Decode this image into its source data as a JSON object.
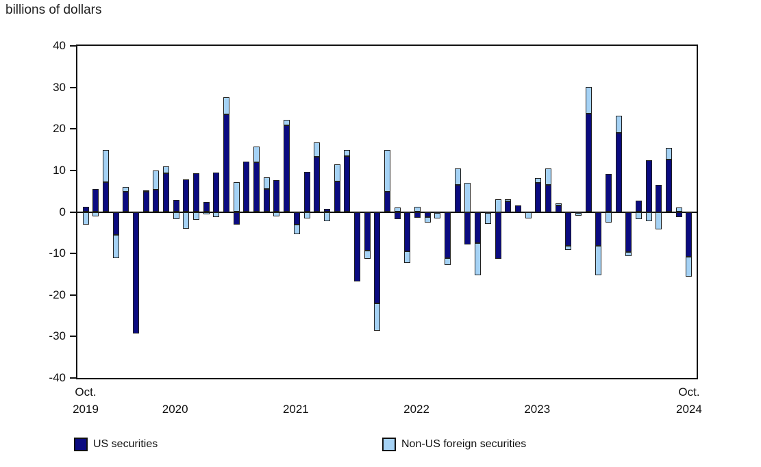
{
  "title": "billions of dollars",
  "colors": {
    "us_securities": "#0b0b80",
    "non_us_securities": "#a5d2f5",
    "axis": "#111111",
    "background": "#ffffff"
  },
  "y_axis": {
    "ticks": [
      40,
      30,
      20,
      10,
      0,
      -10,
      -20,
      -30,
      -40
    ],
    "min": -40,
    "max": 40
  },
  "x_axis": {
    "labels": [
      {
        "line1": "Oct.",
        "line2": "2019",
        "month_index": 0
      },
      {
        "line1": "",
        "line2": "2020",
        "month_index": 8.9
      },
      {
        "line1": "",
        "line2": "2021",
        "month_index": 20.9
      },
      {
        "line1": "",
        "line2": "2022",
        "month_index": 32.9
      },
      {
        "line1": "",
        "line2": "2023",
        "month_index": 44.9
      },
      {
        "line1": "Oct.",
        "line2": "2024",
        "month_index": 60
      }
    ]
  },
  "legend": [
    {
      "label": "US securities",
      "series": "us_securities"
    },
    {
      "label": "Non-US foreign securities",
      "series": "non_us_securities"
    }
  ],
  "chart_data": {
    "type": "bar",
    "stacked": true,
    "title": "billions of dollars",
    "ylabel": "billions of dollars",
    "ylim": [
      -40,
      40
    ],
    "grid": false,
    "legend_position": "bottom",
    "categories": [
      "Oct 2019",
      "Nov 2019",
      "Dec 2019",
      "Jan 2020",
      "Feb 2020",
      "Mar 2020",
      "Apr 2020",
      "May 2020",
      "Jun 2020",
      "Jul 2020",
      "Aug 2020",
      "Sep 2020",
      "Oct 2020",
      "Nov 2020",
      "Dec 2020",
      "Jan 2021",
      "Feb 2021",
      "Mar 2021",
      "Apr 2021",
      "May 2021",
      "Jun 2021",
      "Jul 2021",
      "Aug 2021",
      "Sep 2021",
      "Oct 2021",
      "Nov 2021",
      "Dec 2021",
      "Jan 2022",
      "Feb 2022",
      "Mar 2022",
      "Apr 2022",
      "May 2022",
      "Jun 2022",
      "Jul 2022",
      "Aug 2022",
      "Sep 2022",
      "Oct 2022",
      "Nov 2022",
      "Dec 2022",
      "Jan 2023",
      "Feb 2023",
      "Mar 2023",
      "Apr 2023",
      "May 2023",
      "Jun 2023",
      "Jul 2023",
      "Aug 2023",
      "Sep 2023",
      "Oct 2023",
      "Nov 2023",
      "Dec 2023",
      "Jan 2024",
      "Feb 2024",
      "Mar 2024",
      "Apr 2024",
      "May 2024",
      "Jun 2024",
      "Jul 2024",
      "Aug 2024",
      "Sep 2024",
      "Oct 2024"
    ],
    "series": [
      {
        "name": "US securities",
        "values": [
          1.3,
          5.6,
          7.2,
          -5.6,
          4.8,
          -29.3,
          4.8,
          5.4,
          9.4,
          2.9,
          7.8,
          9.4,
          2.4,
          9.5,
          23.5,
          -3.0,
          12.2,
          11.9,
          5.6,
          7.7,
          20.8,
          -3.1,
          9.6,
          13.3,
          0.8,
          7.4,
          13.4,
          -16.7,
          -9.4,
          -22.0,
          4.8,
          -1.8,
          -9.5,
          -1.4,
          -1.3,
          -0.3,
          -11.1,
          6.5,
          -7.8,
          -7.5,
          -0.3,
          -11.3,
          2.5,
          1.5,
          0.0,
          7.0,
          6.5,
          1.5,
          -8.2,
          -0.2,
          23.6,
          -8.1,
          9.2,
          19.0,
          -9.6,
          2.8,
          12.5,
          6.5,
          12.7,
          -1.2,
          -10.8
        ]
      },
      {
        "name": "Non-US foreign securities",
        "values": [
          -3.0,
          -1.1,
          7.8,
          -5.5,
          1.2,
          0.0,
          0.4,
          4.5,
          1.5,
          -1.8,
          -4.0,
          -1.9,
          -0.6,
          -1.3,
          4.1,
          7.1,
          0.0,
          3.8,
          2.8,
          -1.0,
          1.4,
          -2.2,
          -1.5,
          3.4,
          -2.3,
          4.0,
          1.6,
          0.0,
          -1.9,
          -6.7,
          10.1,
          1.1,
          -2.8,
          1.2,
          -1.3,
          -1.3,
          -1.7,
          4.0,
          7.0,
          -7.8,
          -2.6,
          3.0,
          0.5,
          0.0,
          -1.6,
          1.1,
          4.0,
          0.5,
          -1.0,
          -0.7,
          6.5,
          -7.2,
          -2.6,
          4.2,
          -1.0,
          -1.8,
          -2.3,
          -4.2,
          2.8,
          1.1,
          -4.8
        ]
      }
    ]
  }
}
